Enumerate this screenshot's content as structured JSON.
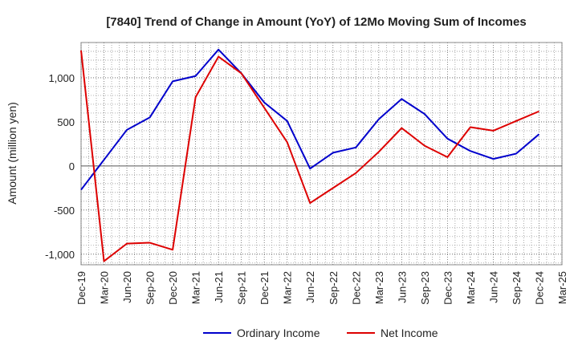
{
  "chart_data": {
    "type": "line",
    "title": "[7840]  Trend of Change in Amount (YoY) of 12Mo Moving Sum of Incomes",
    "xlabel": "",
    "ylabel": "Amount (million yen)",
    "x": [
      "Dec-19",
      "Mar-20",
      "Jun-20",
      "Sep-20",
      "Dec-20",
      "Mar-21",
      "Jun-21",
      "Sep-21",
      "Dec-21",
      "Mar-22",
      "Jun-22",
      "Sep-22",
      "Dec-22",
      "Mar-23",
      "Jun-23",
      "Sep-23",
      "Dec-23",
      "Mar-24",
      "Jun-24",
      "Sep-24",
      "Dec-24",
      "Mar-25"
    ],
    "ylim": [
      -1120,
      1400
    ],
    "yticks": [
      1000,
      500,
      0,
      -500,
      -1000
    ],
    "ytick_labels": [
      "1,000",
      "500",
      "0",
      "-500",
      "-1,000"
    ],
    "grid": true,
    "legend_position": "bottom",
    "series": [
      {
        "name": "Ordinary Income",
        "color": "#0000cc",
        "values": [
          -270,
          70,
          410,
          550,
          960,
          1020,
          1320,
          1050,
          720,
          510,
          -30,
          150,
          210,
          530,
          760,
          590,
          310,
          170,
          80,
          140,
          360,
          null
        ]
      },
      {
        "name": "Net Income",
        "color": "#dd0000",
        "values": [
          1310,
          -1080,
          -880,
          -870,
          -950,
          780,
          1240,
          1050,
          660,
          270,
          -420,
          -250,
          -80,
          160,
          430,
          230,
          100,
          440,
          400,
          510,
          620,
          null
        ]
      }
    ]
  }
}
